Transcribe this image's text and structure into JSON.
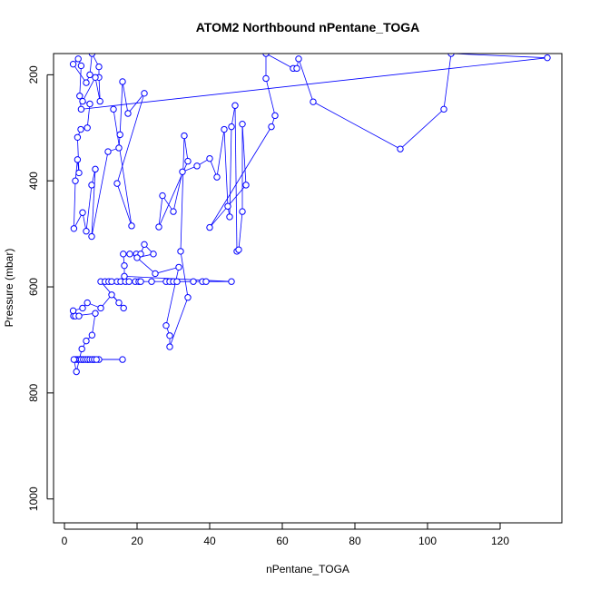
{
  "chart_data": {
    "type": "scatter",
    "title": "ATOM2 Northbound nPentane_TOGA",
    "xlabel": "nPentane_TOGA",
    "ylabel": "Pressure (mbar)",
    "xlim": [
      -3,
      137
    ],
    "ylim": [
      1045,
      160
    ],
    "y_reversed": true,
    "x_ticks": [
      0,
      20,
      40,
      60,
      80,
      100,
      120
    ],
    "y_ticks": [
      200,
      400,
      600,
      800,
      1000
    ],
    "grid": false,
    "legend": "none",
    "series": [
      {
        "color": "#0000ff",
        "marker": "open-circle",
        "connected": true,
        "points": [
          [
            3.5,
            737
          ],
          [
            5.0,
            737
          ],
          [
            6.5,
            737
          ],
          [
            8.0,
            737
          ],
          [
            9.5,
            737
          ],
          [
            16.0,
            737
          ],
          [
            4.0,
            737
          ],
          [
            4.6,
            737
          ],
          [
            5.2,
            737
          ],
          [
            5.8,
            737
          ],
          [
            6.4,
            737
          ],
          [
            7.0,
            737
          ],
          [
            7.6,
            737
          ],
          [
            8.2,
            737
          ],
          [
            8.8,
            737
          ],
          [
            3.0,
            737
          ],
          [
            2.6,
            737
          ],
          [
            3.3,
            760
          ],
          [
            4.8,
            717
          ],
          [
            6.0,
            702
          ],
          [
            7.6,
            691
          ],
          [
            8.5,
            650
          ],
          [
            2.5,
            655
          ],
          [
            3.0,
            655
          ],
          [
            4.0,
            655
          ],
          [
            2.4,
            645
          ],
          [
            5.0,
            640
          ],
          [
            6.3,
            630
          ],
          [
            10.0,
            640
          ],
          [
            13.0,
            615
          ],
          [
            15.0,
            630
          ],
          [
            16.3,
            640
          ],
          [
            10.0,
            590
          ],
          [
            11.2,
            590
          ],
          [
            12.2,
            590
          ],
          [
            13.0,
            590
          ],
          [
            14.5,
            590
          ],
          [
            15.5,
            590
          ],
          [
            16.8,
            590
          ],
          [
            17.8,
            590
          ],
          [
            19.5,
            590
          ],
          [
            20.5,
            590
          ],
          [
            21.0,
            590
          ],
          [
            24.0,
            590
          ],
          [
            28.0,
            590
          ],
          [
            29.0,
            590
          ],
          [
            30.0,
            590
          ],
          [
            31.0,
            590
          ],
          [
            35.5,
            590
          ],
          [
            38.0,
            590
          ],
          [
            39.0,
            590
          ],
          [
            46.0,
            590
          ],
          [
            16.5,
            580
          ],
          [
            16.5,
            560
          ],
          [
            16.2,
            538
          ],
          [
            18.0,
            538
          ],
          [
            19.8,
            538
          ],
          [
            21.0,
            538
          ],
          [
            22.0,
            520
          ],
          [
            24.5,
            538
          ],
          [
            20.0,
            545
          ],
          [
            25.0,
            575
          ],
          [
            31.5,
            563
          ],
          [
            28.0,
            673
          ],
          [
            29.0,
            692
          ],
          [
            29.0,
            713
          ],
          [
            34.0,
            620
          ],
          [
            32.0,
            533
          ],
          [
            33.0,
            315
          ],
          [
            34.0,
            363
          ],
          [
            26.0,
            487
          ],
          [
            27.0,
            428
          ],
          [
            30.0,
            458
          ],
          [
            32.5,
            383
          ],
          [
            36.5,
            372
          ],
          [
            40.0,
            358
          ],
          [
            42.0,
            393
          ],
          [
            44.0,
            303
          ],
          [
            45.0,
            448
          ],
          [
            45.5,
            468
          ],
          [
            46.0,
            298
          ],
          [
            47.0,
            258
          ],
          [
            47.5,
            533
          ],
          [
            48.0,
            530
          ],
          [
            49.0,
            458
          ],
          [
            49.0,
            293
          ],
          [
            50.0,
            408
          ],
          [
            40.0,
            488
          ],
          [
            57.0,
            298
          ],
          [
            58.0,
            277
          ],
          [
            55.5,
            207
          ],
          [
            55.5,
            160
          ],
          [
            63.0,
            188
          ],
          [
            64.0,
            188
          ],
          [
            64.5,
            170
          ],
          [
            68.5,
            251
          ],
          [
            92.5,
            340
          ],
          [
            104.5,
            265
          ],
          [
            106.5,
            160
          ],
          [
            133.0,
            168
          ],
          [
            4.6,
            265
          ],
          [
            4.2,
            240
          ],
          [
            4.6,
            183
          ],
          [
            3.8,
            170
          ],
          [
            2.4,
            180
          ],
          [
            6.0,
            215
          ],
          [
            7.0,
            200
          ],
          [
            7.6,
            160
          ],
          [
            9.5,
            185
          ],
          [
            9.5,
            205
          ],
          [
            9.8,
            250
          ],
          [
            8.5,
            205
          ],
          [
            5.0,
            250
          ],
          [
            7.0,
            255
          ],
          [
            6.3,
            300
          ],
          [
            4.5,
            303
          ],
          [
            3.6,
            318
          ],
          [
            4.0,
            385
          ],
          [
            3.6,
            360
          ],
          [
            3.0,
            400
          ],
          [
            2.6,
            490
          ],
          [
            5.0,
            460
          ],
          [
            6.0,
            495
          ],
          [
            7.5,
            408
          ],
          [
            8.5,
            378
          ],
          [
            7.5,
            505
          ],
          [
            12.0,
            345
          ],
          [
            15.0,
            338
          ],
          [
            15.3,
            313
          ],
          [
            16.0,
            213
          ],
          [
            17.5,
            273
          ],
          [
            22.0,
            235
          ],
          [
            14.5,
            405
          ],
          [
            18.5,
            485
          ],
          [
            13.5,
            265
          ]
        ]
      }
    ]
  }
}
